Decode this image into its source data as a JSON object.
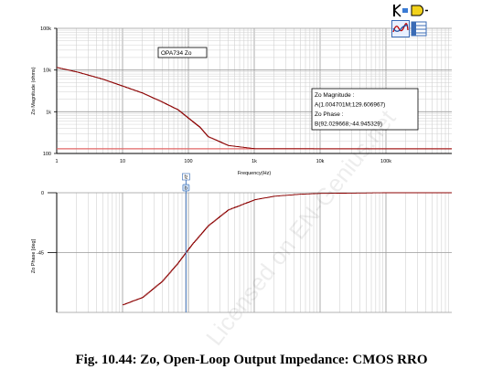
{
  "toolbar": {
    "icons": [
      "cursor-probe-icon",
      "select-trace-icon",
      "wave-view-icon",
      "data-table-icon"
    ]
  },
  "watermark": "Licensed on EN-Genius.net",
  "caption": "Fig. 10.44: Zo, Open-Loop Output Impedance: CMOS RRO",
  "chart_data": [
    {
      "type": "line",
      "title": "",
      "xlabel": "Frequency(Hz)",
      "ylabel": "Zo Magnitude (ohms)",
      "xscale": "log",
      "yscale": "log",
      "xlim": [
        1,
        1000000
      ],
      "ylim": [
        100,
        100000
      ],
      "x_ticks": [
        "1",
        "10",
        "100",
        "1k",
        "10k",
        "100k"
      ],
      "y_ticks": [
        "100",
        "1k",
        "10k",
        "100k"
      ],
      "grid": true,
      "legend_box": "OPA734 Zo",
      "series": [
        {
          "name": "OPA734 Zo",
          "color": "#8b0000",
          "x": [
            1,
            2,
            5,
            10,
            20,
            40,
            70,
            100,
            150,
            200,
            400,
            1000,
            10000,
            100000,
            1000000
          ],
          "y": [
            11500,
            9000,
            6000,
            4100,
            2800,
            1700,
            1100,
            700,
            420,
            250,
            155,
            130,
            129.6,
            129.6,
            129.6
          ]
        }
      ],
      "reference_line": {
        "y": 129.6,
        "color": "#e06666"
      },
      "cursor_readout": {
        "magnitude_label": "Zo Magnitude :",
        "magnitude_value": "A(1.004701M;129.606967)",
        "phase_label": "Zo Phase :",
        "phase_value": "B(92.029668;-44.945329)"
      }
    },
    {
      "type": "line",
      "title": "",
      "xlabel": "",
      "ylabel": "Zo Phase [deg]",
      "xscale": "log",
      "xlim": [
        1,
        1000000
      ],
      "ylim": [
        -90,
        0
      ],
      "y_ticks": [
        "0",
        "-45"
      ],
      "grid": true,
      "series": [
        {
          "name": "Zo Phase",
          "color": "#8b0000",
          "x": [
            10,
            20,
            40,
            70,
            92.03,
            120,
            200,
            400,
            1000,
            2000,
            5000,
            10000,
            100000,
            1000000
          ],
          "y": [
            -84.3,
            -78.7,
            -66.5,
            -52.7,
            -44.9,
            -37.5,
            -24.7,
            -12.9,
            -5.3,
            -2.6,
            -1.1,
            -0.5,
            0,
            0
          ]
        }
      ],
      "cursor": {
        "x": 92.03,
        "label_top": "fz",
        "label_bottom": "b",
        "color": "#4a7bbf"
      }
    }
  ]
}
